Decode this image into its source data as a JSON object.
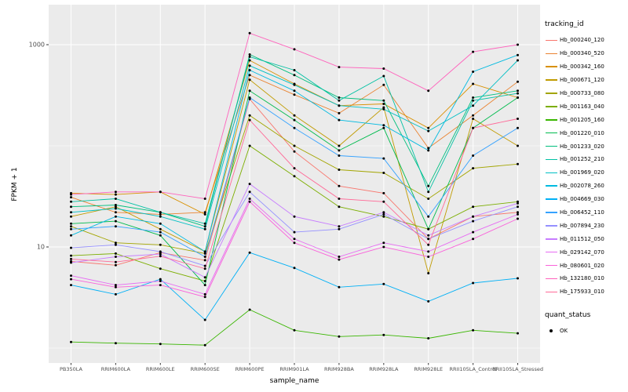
{
  "chart_data": {
    "type": "line",
    "title": "",
    "xlabel": "sample_name",
    "ylabel": "FPKM + 1",
    "y_scale": "log10",
    "ylim": [
      1,
      2000
    ],
    "grid": true,
    "panel_bg": "#EBEBEB",
    "grid_color": "#FFFFFF",
    "point_color": "#000000",
    "axis_text_color": "#4D4D4D",
    "legend_title": "tracking_id",
    "legend_position": "right",
    "y_ticks": [
      {
        "label": "1000",
        "value": 1000
      },
      {
        "label": "10",
        "value": 10
      }
    ],
    "y_minor_gridlines": [
      1,
      100
    ],
    "categories": [
      "PB350LA",
      "RRIM600LA",
      "RRIM600LE",
      "RRIM600SE",
      "RRIM600PE",
      "RRIM901LA",
      "RRIM928BA",
      "RRIM928LA",
      "RRIM928LE",
      "RRII105LA_Control",
      "RRII105LA_Stressed"
    ],
    "series": [
      {
        "name": "Hb_000240_120",
        "color": "#F8766D",
        "values": [
          7.2,
          6.6,
          8.8,
          7.4,
          290,
          88,
          40,
          34,
          12,
          20,
          22
        ]
      },
      {
        "name": "Hb_000340_520",
        "color": "#EA8331",
        "values": [
          31,
          22,
          21,
          22,
          500,
          320,
          210,
          400,
          95,
          200,
          430
        ]
      },
      {
        "name": "Hb_000342_160",
        "color": "#D89000",
        "values": [
          34,
          33,
          35,
          21,
          700,
          410,
          250,
          260,
          150,
          410,
          300
        ]
      },
      {
        "name": "Hb_000671_120",
        "color": "#C09B00",
        "values": [
          20,
          25,
          15,
          9,
          450,
          200,
          100,
          240,
          5.5,
          185,
          100
        ]
      },
      {
        "name": "Hb_000733_080",
        "color": "#A3A500",
        "values": [
          16,
          11,
          10.5,
          8.6,
          200,
          100,
          58,
          54,
          30,
          60,
          66
        ]
      },
      {
        "name": "Hb_001163_040",
        "color": "#7CAE00",
        "values": [
          8.2,
          8.6,
          6.1,
          4.6,
          100,
          50,
          25,
          20,
          15,
          25,
          28
        ]
      },
      {
        "name": "Hb_001205_160",
        "color": "#39B600",
        "values": [
          1.15,
          1.12,
          1.1,
          1.07,
          2.4,
          1.5,
          1.3,
          1.35,
          1.25,
          1.5,
          1.4
        ]
      },
      {
        "name": "Hb_001220_010",
        "color": "#00BB4E",
        "values": [
          17,
          18,
          13,
          4.2,
          350,
          180,
          90,
          150,
          15,
          150,
          300
        ]
      },
      {
        "name": "Hb_001233_020",
        "color": "#00BF7D",
        "values": [
          25,
          26,
          22,
          16,
          800,
          500,
          300,
          280,
          40,
          300,
          350
        ]
      },
      {
        "name": "Hb_001252_210",
        "color": "#00C1A3",
        "values": [
          28,
          30,
          22,
          17,
          760,
          560,
          280,
          490,
          35,
          280,
          330
        ]
      },
      {
        "name": "Hb_001969_020",
        "color": "#00BFC4",
        "values": [
          22,
          24,
          20,
          15,
          620,
          400,
          250,
          230,
          140,
          250,
          700
        ]
      },
      {
        "name": "Hb_002078_260",
        "color": "#00BAE0",
        "values": [
          13,
          20,
          17,
          9,
          560,
          350,
          180,
          160,
          90,
          540,
          790
        ]
      },
      {
        "name": "Hb_004669_030",
        "color": "#00B0F6",
        "values": [
          4.2,
          3.4,
          4.8,
          1.9,
          8.8,
          6.2,
          4.0,
          4.3,
          2.9,
          4.4,
          4.9
        ]
      },
      {
        "name": "Hb_006452_110",
        "color": "#35A2FF",
        "values": [
          15,
          16,
          14,
          8,
          300,
          150,
          80,
          75,
          20,
          80,
          150
        ]
      },
      {
        "name": "Hb_007894_230",
        "color": "#9590FF",
        "values": [
          9.8,
          10.5,
          9,
          6.5,
          35,
          14,
          15,
          21,
          12,
          18,
          25
        ]
      },
      {
        "name": "Hb_011512_050",
        "color": "#C77CFF",
        "values": [
          7,
          8,
          8.5,
          5,
          42,
          20,
          16,
          22,
          13,
          20,
          27
        ]
      },
      {
        "name": "Hb_029142_070",
        "color": "#E76BF3",
        "values": [
          5.2,
          4.2,
          4.6,
          3.4,
          30,
          12,
          8,
          11,
          9,
          14,
          21
        ]
      },
      {
        "name": "Hb_080601_020",
        "color": "#FA62DB",
        "values": [
          4.8,
          4.0,
          4.2,
          3.2,
          28,
          11,
          7.5,
          10,
          8,
          12,
          19
        ]
      },
      {
        "name": "Hb_132180_010",
        "color": "#FF62BC",
        "values": [
          33,
          35,
          35,
          30,
          1300,
          900,
          600,
          580,
          350,
          850,
          1000
        ]
      },
      {
        "name": "Hb_175933_010",
        "color": "#FF6A98",
        "values": [
          7.6,
          7.1,
          8.1,
          6.1,
          180,
          60,
          30,
          28,
          10.5,
          150,
          185
        ]
      }
    ],
    "quant_legend": {
      "title": "quant_status",
      "items": [
        {
          "label": "OK"
        }
      ]
    }
  }
}
